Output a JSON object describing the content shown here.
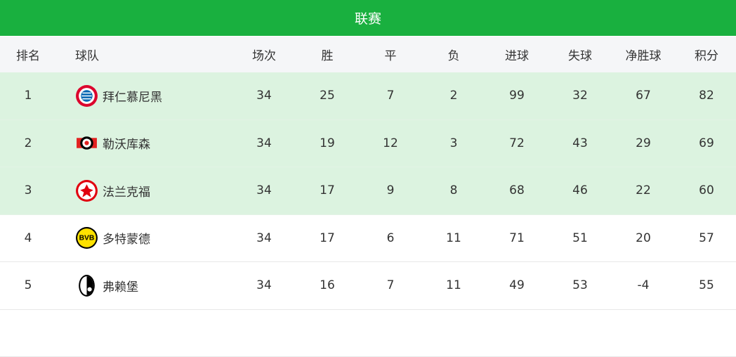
{
  "title": "联赛",
  "columns": [
    "排名",
    "球队",
    "场次",
    "胜",
    "平",
    "负",
    "进球",
    "失球",
    "净胜球",
    "积分"
  ],
  "rows": [
    {
      "rank": "1",
      "team": "拜仁慕尼黑",
      "logo": "bayern-logo",
      "played": "34",
      "won": "25",
      "drawn": "7",
      "lost": "2",
      "gf": "99",
      "ga": "32",
      "gd": "67",
      "pts": "82"
    },
    {
      "rank": "2",
      "team": "勒沃库森",
      "logo": "leverkusen-logo",
      "played": "34",
      "won": "19",
      "drawn": "12",
      "lost": "3",
      "gf": "72",
      "ga": "43",
      "gd": "29",
      "pts": "69"
    },
    {
      "rank": "3",
      "team": "法兰克福",
      "logo": "frankfurt-logo",
      "played": "34",
      "won": "17",
      "drawn": "9",
      "lost": "8",
      "gf": "68",
      "ga": "46",
      "gd": "22",
      "pts": "60"
    },
    {
      "rank": "4",
      "team": "多特蒙德",
      "logo": "dortmund-logo",
      "played": "34",
      "won": "17",
      "drawn": "6",
      "lost": "11",
      "gf": "71",
      "ga": "51",
      "gd": "20",
      "pts": "57"
    },
    {
      "rank": "5",
      "team": "弗赖堡",
      "logo": "freiburg-logo",
      "played": "34",
      "won": "16",
      "drawn": "7",
      "lost": "11",
      "gf": "49",
      "ga": "53",
      "gd": "-4",
      "pts": "55"
    }
  ],
  "colors": {
    "title_bg": "#19b03f",
    "highlight_row": "#dcf3e0",
    "header_bg": "#f5f6f8"
  }
}
